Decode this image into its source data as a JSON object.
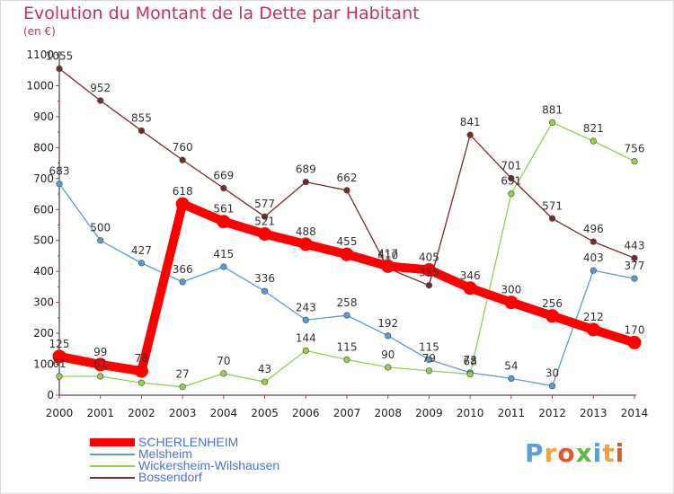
{
  "chart_data": {
    "type": "line",
    "title": "Evolution du Montant de la Dette par Habitant",
    "subtitle": "(en €)",
    "x": [
      "2000",
      "2001",
      "2002",
      "2003",
      "2004",
      "2005",
      "2006",
      "2007",
      "2008",
      "2009",
      "2010",
      "2011",
      "2012",
      "2013",
      "2014"
    ],
    "ylim": [
      0,
      1100
    ],
    "yticks": [
      "0",
      "100",
      "200",
      "300",
      "400",
      "500",
      "600",
      "700",
      "800",
      "900",
      "1000",
      "1100"
    ],
    "grid": false,
    "legend_position": "bottom",
    "series": [
      {
        "name": "SCHERLENHEIM",
        "color": "#ff0000",
        "values": [
          125,
          99,
          78,
          618,
          561,
          521,
          488,
          455,
          417,
          405,
          346,
          300,
          256,
          212,
          170
        ],
        "labels": [
          "125",
          "99",
          "78",
          "618",
          "561",
          "521",
          "488",
          "455",
          "417",
          "405",
          "346",
          "300",
          "256",
          "212",
          "170"
        ]
      },
      {
        "name": "Melsheim",
        "color": "#5b9bd5",
        "values": [
          683,
          500,
          427,
          366,
          415,
          336,
          243,
          258,
          192,
          115,
          73,
          54,
          30,
          403,
          377
        ],
        "labels": [
          "683",
          "500",
          "427",
          "366",
          "415",
          "336",
          "243",
          "258",
          "192",
          "115",
          "73",
          "54",
          "30",
          "403",
          "377"
        ]
      },
      {
        "name": "Wickersheim-Wilshausen",
        "color": "#92d050",
        "values": [
          61,
          61,
          40,
          27,
          70,
          43,
          144,
          115,
          90,
          79,
          68,
          651,
          881,
          821,
          756
        ],
        "labels": [
          "61",
          "61",
          "",
          "27",
          "70",
          "43",
          "144",
          "115",
          "90",
          "79",
          "68",
          "651",
          "881",
          "821",
          "756"
        ]
      },
      {
        "name": "Bossendorf",
        "color": "#7b2a2a",
        "values": [
          1055,
          952,
          855,
          760,
          669,
          577,
          689,
          662,
          410,
          355,
          841,
          701,
          571,
          496,
          443
        ],
        "labels": [
          "1055",
          "952",
          "855",
          "760",
          "669",
          "577",
          "689",
          "662",
          "410",
          "355",
          "841",
          "701",
          "571",
          "496",
          "443"
        ]
      }
    ]
  },
  "logo": {
    "text": "Proxiti",
    "letters": [
      "P",
      "r",
      "o",
      "x",
      "i",
      "t",
      "i"
    ],
    "colors": [
      "#5aa0de",
      "#f2a33a",
      "#e05a2b",
      "#5fb848",
      "#5aa0de",
      "#f2a33a",
      "#e05a2b"
    ]
  }
}
